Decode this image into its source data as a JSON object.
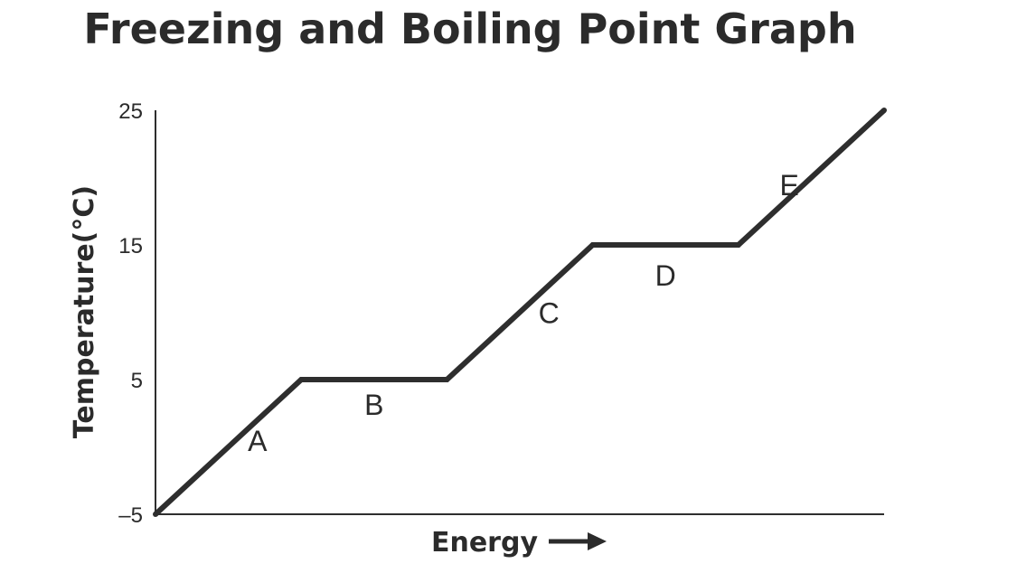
{
  "chart_data": {
    "type": "line",
    "title": "Freezing and Boiling Point Graph",
    "xlabel": "Energy",
    "ylabel": "Temperature(°C)",
    "yticks": [
      -5,
      5,
      15,
      25
    ],
    "ytick_labels": [
      "–5",
      "5",
      "15",
      "25"
    ],
    "ylim": [
      -5,
      25
    ],
    "xlim": [
      0,
      10
    ],
    "grid": false,
    "line_color": "#2e2e2e",
    "points": [
      {
        "x": 0,
        "y": -5
      },
      {
        "x": 2,
        "y": 5
      },
      {
        "x": 4,
        "y": 5
      },
      {
        "x": 6,
        "y": 15
      },
      {
        "x": 8,
        "y": 15
      },
      {
        "x": 10,
        "y": 25
      }
    ],
    "segment_labels": [
      {
        "text": "A",
        "x": 1.4,
        "y": 0.5
      },
      {
        "text": "B",
        "x": 3.0,
        "y": 3.2
      },
      {
        "text": "C",
        "x": 5.4,
        "y": 10.0
      },
      {
        "text": "D",
        "x": 7.0,
        "y": 12.8
      },
      {
        "text": "E",
        "x": 8.7,
        "y": 19.5
      }
    ]
  }
}
